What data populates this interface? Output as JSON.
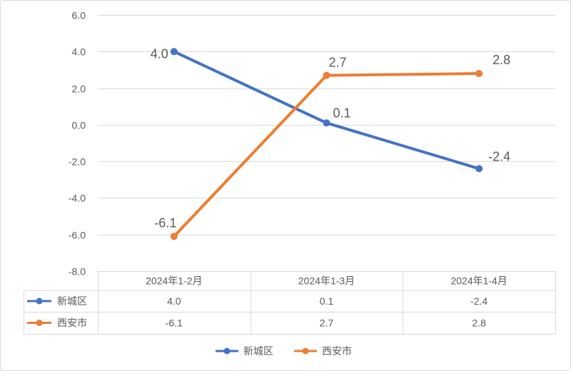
{
  "chart_data": {
    "type": "line",
    "categories": [
      "2024年1-2月",
      "2024年1-3月",
      "2024年1-4月"
    ],
    "series": [
      {
        "name": "新城区",
        "color": "#4472C4",
        "values": [
          4.0,
          0.1,
          -2.4
        ],
        "labels": [
          "4.0",
          "0.1",
          "-2.4"
        ]
      },
      {
        "name": "西安市",
        "color": "#ED7D31",
        "values": [
          -6.1,
          2.7,
          2.8
        ],
        "labels": [
          "-6.1",
          "2.7",
          "2.8"
        ]
      }
    ],
    "ylim": [
      -8,
      6
    ],
    "yticks": [
      6,
      4,
      2,
      0,
      -2,
      -4,
      -6,
      -8
    ],
    "ytick_labels": [
      "6.0",
      "4.0",
      "2.0",
      "0.0",
      "-2.0",
      "-4.0",
      "-6.0",
      "-8.0"
    ],
    "grid": true,
    "data_labels": true,
    "data_table": true,
    "legend": "bottom"
  },
  "colors": {
    "background": "#FFFFFF",
    "grid": "#D9D9D9",
    "text": "#595959",
    "border": "#D9D9D9"
  }
}
